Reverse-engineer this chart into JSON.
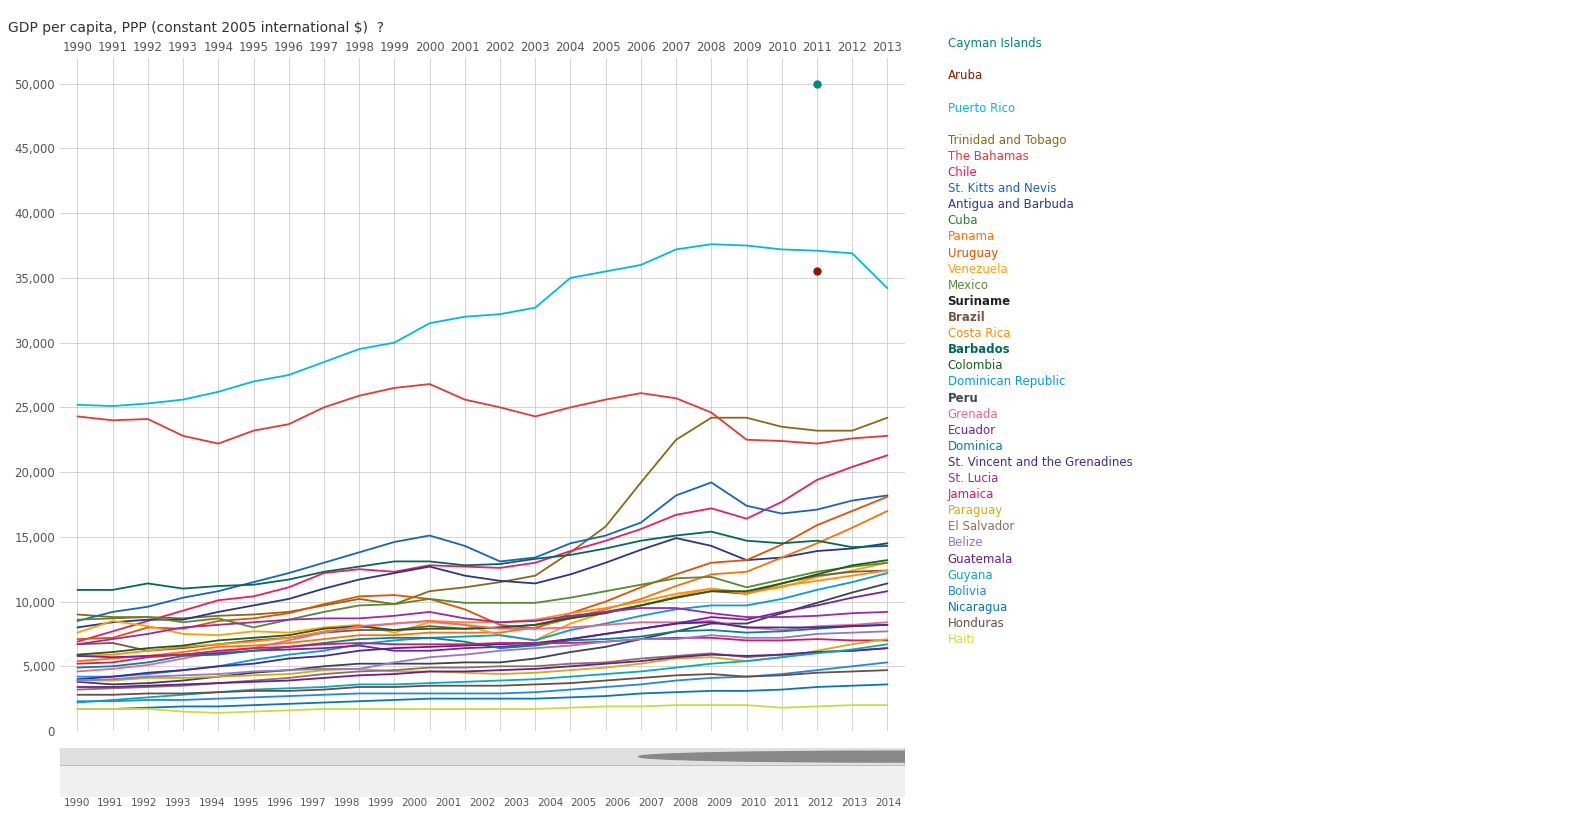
{
  "title": "GDP per capita, PPP (constant 2005 international $)  ❓",
  "years": [
    1990,
    1991,
    1992,
    1993,
    1994,
    1995,
    1996,
    1997,
    1998,
    1999,
    2000,
    2001,
    2002,
    2003,
    2004,
    2005,
    2006,
    2007,
    2008,
    2009,
    2010,
    2011,
    2012,
    2013
  ],
  "series": {
    "Cayman Islands": {
      "color": "#00897B",
      "data": [
        null,
        null,
        null,
        null,
        null,
        null,
        null,
        null,
        null,
        null,
        null,
        null,
        null,
        null,
        null,
        null,
        null,
        null,
        null,
        null,
        null,
        null,
        null,
        null
      ],
      "dot": [
        2011,
        50000
      ]
    },
    "Aruba": {
      "color": "#8B1A00",
      "data": [
        null,
        null,
        null,
        null,
        null,
        null,
        null,
        null,
        null,
        null,
        null,
        null,
        null,
        null,
        null,
        null,
        null,
        null,
        null,
        null,
        null,
        null,
        null,
        null
      ],
      "dot": [
        2011,
        35500
      ]
    },
    "Puerto Rico": {
      "color": "#00BCD4",
      "data": [
        25200,
        25100,
        25300,
        25600,
        26200,
        27000,
        27500,
        28500,
        29500,
        30000,
        31500,
        32000,
        32200,
        32700,
        35000,
        35500,
        36000,
        37200,
        37600,
        37500,
        37200,
        37100,
        36900,
        34200
      ]
    },
    "Trinidad and Tobago": {
      "color": "#8B6914",
      "data": [
        9000,
        8800,
        8800,
        8700,
        8900,
        9000,
        9200,
        9700,
        10200,
        9800,
        10800,
        11100,
        11500,
        12000,
        13800,
        15800,
        19200,
        22500,
        24200,
        24200,
        23500,
        23200,
        23200,
        24200
      ]
    },
    "The Bahamas": {
      "color": "#E53935",
      "data": [
        24300,
        24000,
        24100,
        22800,
        22200,
        23200,
        23700,
        25000,
        25900,
        26500,
        26800,
        25600,
        25000,
        24300,
        25000,
        25600,
        26100,
        25700,
        24600,
        22500,
        22400,
        22200,
        22600,
        22800
      ]
    },
    "Chile": {
      "color": "#E91E63",
      "data": [
        6900,
        7700,
        8500,
        9300,
        10100,
        10400,
        11100,
        12200,
        12500,
        12300,
        12800,
        12700,
        12600,
        13000,
        13900,
        14700,
        15600,
        16700,
        17200,
        16400,
        17700,
        19400,
        20400,
        21300
      ]
    },
    "St. Kitts and Nevis": {
      "color": "#1565C0",
      "data": [
        8500,
        9200,
        9600,
        10300,
        10800,
        11500,
        12200,
        13000,
        13800,
        14600,
        15100,
        14300,
        13100,
        13400,
        14500,
        15100,
        16100,
        18200,
        19200,
        17400,
        16800,
        17100,
        17800,
        18200
      ]
    },
    "Antigua and Barbuda": {
      "color": "#283593",
      "data": [
        8000,
        8400,
        8600,
        8600,
        9200,
        9700,
        10200,
        11000,
        11700,
        12200,
        12700,
        12000,
        11600,
        11400,
        12100,
        13000,
        14000,
        14900,
        14300,
        13200,
        13400,
        13900,
        14100,
        14500
      ]
    },
    "Cuba": {
      "color": "#2E7D32",
      "data": [
        null,
        null,
        null,
        null,
        null,
        null,
        null,
        null,
        null,
        null,
        null,
        null,
        null,
        null,
        null,
        null,
        null,
        null,
        null,
        null,
        null,
        null,
        null,
        null
      ]
    },
    "Panama": {
      "color": "#FF6F00",
      "data": [
        5400,
        5600,
        5800,
        6100,
        6500,
        6600,
        6800,
        7100,
        7400,
        7400,
        7600,
        7600,
        7600,
        8000,
        8700,
        9400,
        10200,
        11200,
        12100,
        12300,
        13400,
        14500,
        15700,
        17000
      ]
    },
    "Uruguay": {
      "color": "#E65100",
      "data": [
        7100,
        7200,
        8000,
        7900,
        8500,
        8700,
        9100,
        9800,
        10400,
        10500,
        10200,
        9400,
        8200,
        7900,
        9100,
        10000,
        11100,
        12100,
        13000,
        13200,
        14400,
        15900,
        17000,
        18100
      ]
    },
    "Venezuela": {
      "color": "#FFA000",
      "data": [
        7600,
        8500,
        8100,
        7500,
        7400,
        7700,
        7600,
        8000,
        8200,
        7600,
        8400,
        8200,
        7400,
        7000,
        8300,
        9200,
        9700,
        10400,
        11000,
        10700,
        11100,
        11900,
        12400,
        13000
      ]
    },
    "Mexico": {
      "color": "#558B2F",
      "data": [
        8600,
        8700,
        8800,
        8400,
        8700,
        8000,
        8600,
        9200,
        9700,
        9800,
        10200,
        9900,
        9900,
        9900,
        10300,
        10800,
        11300,
        11800,
        11900,
        11100,
        11700,
        12300,
        12700,
        13000
      ]
    },
    "Suriname": {
      "color": "#212121",
      "data": [
        null,
        null,
        null,
        null,
        null,
        null,
        null,
        null,
        null,
        null,
        null,
        null,
        null,
        null,
        null,
        null,
        null,
        null,
        null,
        null,
        null,
        null,
        null,
        null
      ]
    },
    "Brazil": {
      "color": "#795548",
      "data": [
        6700,
        6800,
        6200,
        6400,
        6700,
        7000,
        7200,
        7600,
        7800,
        7800,
        8100,
        7900,
        8000,
        8200,
        8800,
        9200,
        9700,
        10300,
        10800,
        10600,
        11400,
        12000,
        12300,
        12400
      ]
    },
    "Costa Rica": {
      "color": "#FF8F00",
      "data": [
        5800,
        5900,
        6200,
        6500,
        6700,
        6900,
        7200,
        7700,
        8000,
        8300,
        8500,
        8400,
        8400,
        8600,
        9100,
        9500,
        10000,
        10600,
        11000,
        10600,
        11200,
        11600,
        12000,
        12400
      ]
    },
    "Barbados": {
      "color": "#00695C",
      "data": [
        10900,
        10900,
        11400,
        11000,
        11200,
        11300,
        11700,
        12300,
        12700,
        13100,
        13100,
        12800,
        12900,
        13300,
        13600,
        14100,
        14700,
        15100,
        15400,
        14700,
        14500,
        14700,
        14200,
        14300
      ]
    },
    "Colombia": {
      "color": "#1B5E20",
      "data": [
        5900,
        6100,
        6400,
        6600,
        7000,
        7200,
        7400,
        7900,
        8100,
        7800,
        7900,
        7900,
        8000,
        8200,
        8700,
        9100,
        9700,
        10300,
        10800,
        10800,
        11400,
        12100,
        12800,
        13200
      ]
    },
    "Dominican Republic": {
      "color": "#039BE5",
      "data": [
        4200,
        4200,
        4400,
        4700,
        5000,
        5500,
        5900,
        6200,
        6700,
        7000,
        7200,
        7300,
        7400,
        7000,
        7800,
        8300,
        8900,
        9400,
        9700,
        9700,
        10200,
        10900,
        11500,
        12200
      ]
    },
    "Peru": {
      "color": "#37474F",
      "data": [
        3800,
        3600,
        3700,
        3900,
        4200,
        4500,
        4700,
        5000,
        5200,
        5200,
        5200,
        5300,
        5300,
        5600,
        6100,
        6500,
        7100,
        7700,
        8300,
        8300,
        9100,
        9900,
        10700,
        11400
      ]
    },
    "Grenada": {
      "color": "#F06292",
      "data": [
        4600,
        4800,
        5100,
        5600,
        6100,
        6400,
        7000,
        7600,
        8100,
        8300,
        8500,
        8200,
        7900,
        7900,
        8000,
        8200,
        8400,
        8400,
        8500,
        8000,
        7800,
        8100,
        8200,
        8400
      ]
    },
    "Ecuador": {
      "color": "#7B1FA2",
      "data": [
        5800,
        5700,
        5800,
        5900,
        6000,
        6200,
        6300,
        6400,
        6600,
        6200,
        6200,
        6400,
        6500,
        6700,
        7100,
        7500,
        7900,
        8300,
        8800,
        8600,
        9200,
        9700,
        10300,
        10800
      ]
    },
    "Dominica": {
      "color": "#00838F",
      "data": [
        4900,
        5000,
        5300,
        5800,
        5900,
        6200,
        6500,
        6800,
        7100,
        7200,
        7200,
        6900,
        6400,
        6600,
        7000,
        7100,
        7300,
        7700,
        7800,
        7600,
        7700,
        7900,
        8100,
        8200
      ]
    },
    "St. Vincent and the Grenadines": {
      "color": "#4527A0",
      "data": [
        4000,
        4200,
        4500,
        4700,
        5000,
        5200,
        5600,
        5800,
        6200,
        6400,
        6500,
        6600,
        6700,
        6800,
        7100,
        7500,
        7900,
        8300,
        8400,
        8000,
        8000,
        8000,
        8100,
        8200
      ]
    },
    "St. Lucia": {
      "color": "#9C27B0",
      "data": [
        6700,
        7100,
        7500,
        8000,
        8200,
        8400,
        8600,
        8700,
        8700,
        8900,
        9200,
        8700,
        8400,
        8500,
        8900,
        9200,
        9500,
        9500,
        9100,
        8800,
        8800,
        8900,
        9100,
        9200
      ]
    },
    "Jamaica": {
      "color": "#D81B60",
      "data": [
        5200,
        5300,
        5700,
        5900,
        6200,
        6400,
        6500,
        6700,
        6800,
        6700,
        6700,
        6700,
        6800,
        6800,
        6800,
        6900,
        7100,
        7200,
        7200,
        7000,
        7000,
        7100,
        7000,
        7000
      ]
    },
    "Paraguay": {
      "color": "#D4AC0D",
      "data": [
        3900,
        3900,
        4100,
        4100,
        4200,
        4300,
        4400,
        4700,
        4800,
        4600,
        4600,
        4500,
        4400,
        4500,
        4700,
        4900,
        5200,
        5600,
        5700,
        5400,
        5700,
        6200,
        6700,
        7100
      ]
    },
    "El Salvador": {
      "color": "#8D6E63",
      "data": [
        3200,
        3300,
        3400,
        3500,
        3700,
        3900,
        4100,
        4400,
        4600,
        4700,
        4900,
        4900,
        5000,
        5000,
        5200,
        5300,
        5600,
        5800,
        6000,
        5700,
        5900,
        6100,
        6200,
        6400
      ]
    },
    "Belize": {
      "color": "#9575CD",
      "data": [
        3900,
        4000,
        4200,
        4300,
        4400,
        4600,
        4700,
        4800,
        4800,
        5300,
        5700,
        5900,
        6200,
        6400,
        6600,
        6900,
        7100,
        7100,
        7400,
        7200,
        7200,
        7500,
        7600,
        7700
      ]
    },
    "Guatemala": {
      "color": "#6A1B9A",
      "data": [
        3400,
        3400,
        3500,
        3600,
        3700,
        3800,
        3900,
        4100,
        4300,
        4400,
        4600,
        4600,
        4700,
        4800,
        5000,
        5200,
        5400,
        5700,
        5900,
        5800,
        5900,
        6100,
        6200,
        6400
      ]
    },
    "Guyana": {
      "color": "#00ACC1",
      "data": [
        2200,
        2400,
        2600,
        2800,
        3000,
        3200,
        3300,
        3400,
        3600,
        3600,
        3700,
        3800,
        3900,
        4000,
        4200,
        4400,
        4600,
        4900,
        5200,
        5400,
        5700,
        6000,
        6300,
        6700
      ]
    },
    "Bolivia": {
      "color": "#1E88E5",
      "data": [
        2300,
        2300,
        2400,
        2400,
        2500,
        2600,
        2700,
        2800,
        2900,
        2900,
        2900,
        2900,
        2900,
        3000,
        3200,
        3400,
        3600,
        3900,
        4100,
        4200,
        4400,
        4700,
        5000,
        5300
      ]
    },
    "Nicaragua": {
      "color": "#0277BD",
      "data": [
        1700,
        1700,
        1800,
        1900,
        1900,
        2000,
        2100,
        2200,
        2300,
        2400,
        2500,
        2500,
        2500,
        2500,
        2600,
        2700,
        2900,
        3000,
        3100,
        3100,
        3200,
        3400,
        3500,
        3600
      ]
    },
    "Honduras": {
      "color": "#6D4C41",
      "data": [
        2800,
        2800,
        2900,
        2900,
        3000,
        3100,
        3100,
        3200,
        3400,
        3400,
        3500,
        3500,
        3500,
        3600,
        3700,
        3900,
        4100,
        4300,
        4400,
        4200,
        4300,
        4500,
        4600,
        4700
      ]
    },
    "Haiti": {
      "color": "#CDDC39",
      "data": [
        1700,
        1700,
        1700,
        1500,
        1400,
        1500,
        1600,
        1700,
        1700,
        1700,
        1700,
        1700,
        1700,
        1700,
        1800,
        1900,
        1900,
        2000,
        2000,
        2000,
        1800,
        1900,
        2000,
        2000
      ]
    }
  },
  "legend_entries": [
    [
      "Cayman Islands",
      "#00897B"
    ],
    [
      "",
      null
    ],
    [
      "Aruba",
      "#8B1A00"
    ],
    [
      "",
      null
    ],
    [
      "Puerto Rico",
      "#00BCD4"
    ],
    [
      "",
      null
    ],
    [
      "Trinidad and Tobago",
      "#8B6914"
    ],
    [
      "The Bahamas",
      "#E53935"
    ],
    [
      "Chile",
      "#E91E63"
    ],
    [
      "St. Kitts and Nevis",
      "#1565C0"
    ],
    [
      "Antigua and Barbuda",
      "#283593"
    ],
    [
      "Cuba",
      "#2E7D32"
    ],
    [
      "Panama",
      "#FF6F00"
    ],
    [
      "Uruguay",
      "#E65100"
    ],
    [
      "Venezuela",
      "#FFA000"
    ],
    [
      "Mexico",
      "#558B2F"
    ],
    [
      "Suriname",
      "#212121"
    ],
    [
      "Brazil",
      "#795548"
    ],
    [
      "Costa Rica",
      "#FF8F00"
    ],
    [
      "Barbados",
      "#00695C"
    ],
    [
      "Colombia",
      "#1B5E20"
    ],
    [
      "Dominican Republic",
      "#039BE5"
    ],
    [
      "Peru",
      "#37474F"
    ],
    [
      "Grenada",
      "#F06292"
    ],
    [
      "Ecuador",
      "#7B1FA2"
    ],
    [
      "Dominica",
      "#00838F"
    ],
    [
      "St. Vincent and the Grenadines",
      "#4527A0"
    ],
    [
      "St. Lucia",
      "#9C27B0"
    ],
    [
      "Jamaica",
      "#D81B60"
    ],
    [
      "Paraguay",
      "#D4AC0D"
    ],
    [
      "El Salvador",
      "#8D6E63"
    ],
    [
      "Belize",
      "#9575CD"
    ],
    [
      "Guatemala",
      "#6A1B9A"
    ],
    [
      "Guyana",
      "#00ACC1"
    ],
    [
      "Bolivia",
      "#1E88E5"
    ],
    [
      "Nicaragua",
      "#0277BD"
    ],
    [
      "Honduras",
      "#6D4C41"
    ],
    [
      "Haiti",
      "#CDDC39"
    ]
  ],
  "bold_entries": [
    "Suriname",
    "Brazil",
    "Barbados",
    "Peru"
  ],
  "ylim": [
    0,
    52000
  ],
  "yticks": [
    0,
    5000,
    10000,
    15000,
    20000,
    25000,
    30000,
    35000,
    40000,
    45000,
    50000
  ],
  "background_color": "#FFFFFF",
  "plot_bg_color": "#FFFFFF",
  "grid_color": "#CCCCCC"
}
